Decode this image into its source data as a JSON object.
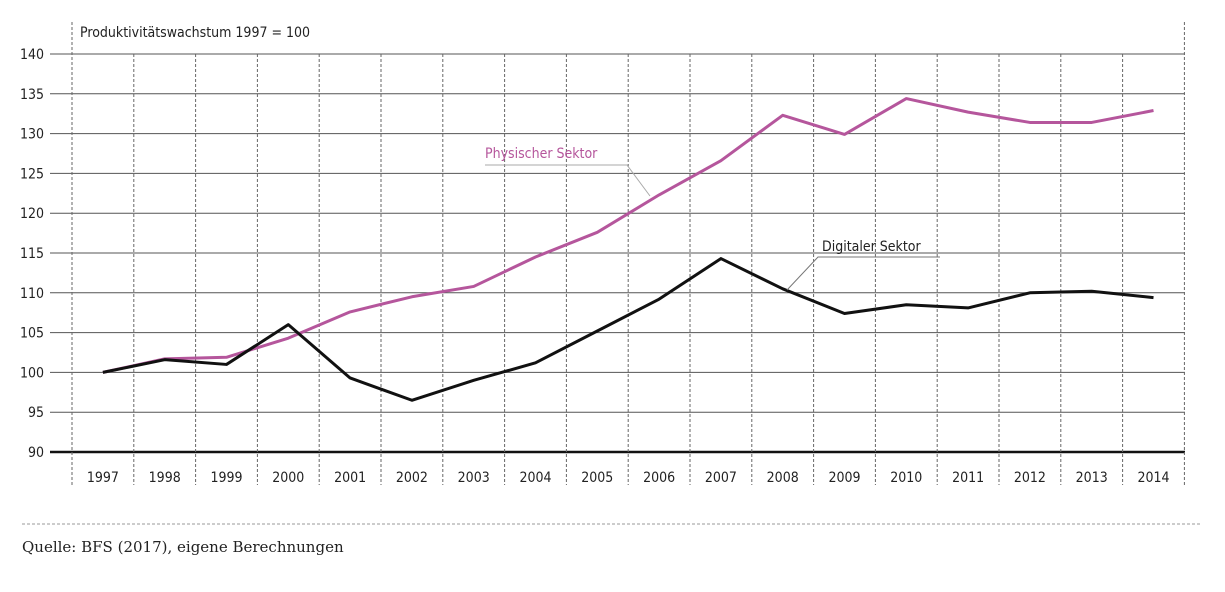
{
  "chart_data": {
    "type": "line",
    "title": "Produktivitätswachstum 1997 = 100",
    "xlabel": "",
    "ylabel": "",
    "x": [
      "1997",
      "1998",
      "1999",
      "2000",
      "2001",
      "2002",
      "2003",
      "2004",
      "2005",
      "2006",
      "2007",
      "2008",
      "2009",
      "2010",
      "2011",
      "2012",
      "2013",
      "2014"
    ],
    "ylim": [
      90,
      140
    ],
    "yticks": [
      90,
      95,
      100,
      105,
      110,
      115,
      120,
      125,
      130,
      135,
      140
    ],
    "grid": true,
    "series": [
      {
        "name": "Physischer Sektor",
        "color": "#b5569c",
        "values": [
          100,
          101.7,
          101.9,
          104.3,
          107.6,
          109.5,
          110.8,
          114.5,
          117.6,
          122.3,
          126.6,
          132.3,
          129.9,
          134.4,
          132.7,
          131.4,
          131.4,
          132.9
        ]
      },
      {
        "name": "Digitaler Sektor",
        "color": "#111111",
        "values": [
          100,
          101.6,
          101.0,
          106.0,
          99.3,
          96.5,
          99.0,
          101.2,
          105.2,
          109.2,
          114.3,
          110.5,
          107.4,
          108.5,
          108.1,
          110.0,
          110.2,
          109.4
        ]
      }
    ]
  },
  "source": "Quelle: BFS (2017), eigene Berechnungen"
}
